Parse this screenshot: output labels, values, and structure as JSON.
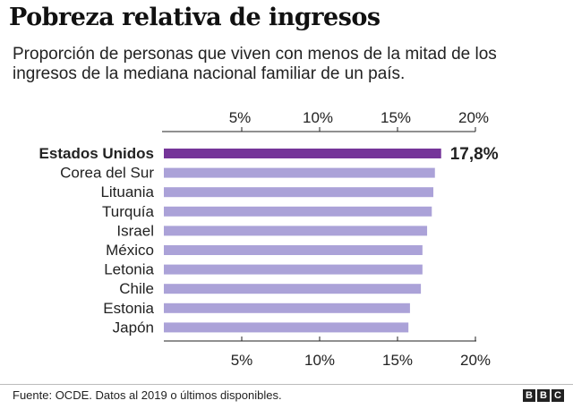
{
  "chart_data": {
    "type": "bar",
    "orientation": "horizontal",
    "title": "Pobreza relativa de ingresos",
    "subtitle": "Proporción de personas que viven con menos de la mitad de los ingresos de la mediana nacional familiar de un país.",
    "categories": [
      "Estados Unidos",
      "Corea del Sur",
      "Lituania",
      "Turquía",
      "Israel",
      "México",
      "Letonia",
      "Chile",
      "Estonia",
      "Japón"
    ],
    "values": [
      17.8,
      17.4,
      17.3,
      17.2,
      16.9,
      16.6,
      16.6,
      16.5,
      15.8,
      15.7
    ],
    "highlight_index": 0,
    "highlight_label": "17,8%",
    "xlim": [
      0,
      20
    ],
    "ticks": [
      5,
      10,
      15,
      20
    ],
    "tick_labels": [
      "5%",
      "10%",
      "15%",
      "20%"
    ],
    "axis_positions": [
      "top",
      "bottom"
    ],
    "grid": false,
    "colors": {
      "highlight": "#753599",
      "bars": "#aba2d8",
      "axis": "#222222"
    }
  },
  "footer": {
    "source": "Fuente: OCDE. Datos al 2019 o últimos disponibles.",
    "logo_letters": [
      "B",
      "B",
      "C"
    ]
  }
}
